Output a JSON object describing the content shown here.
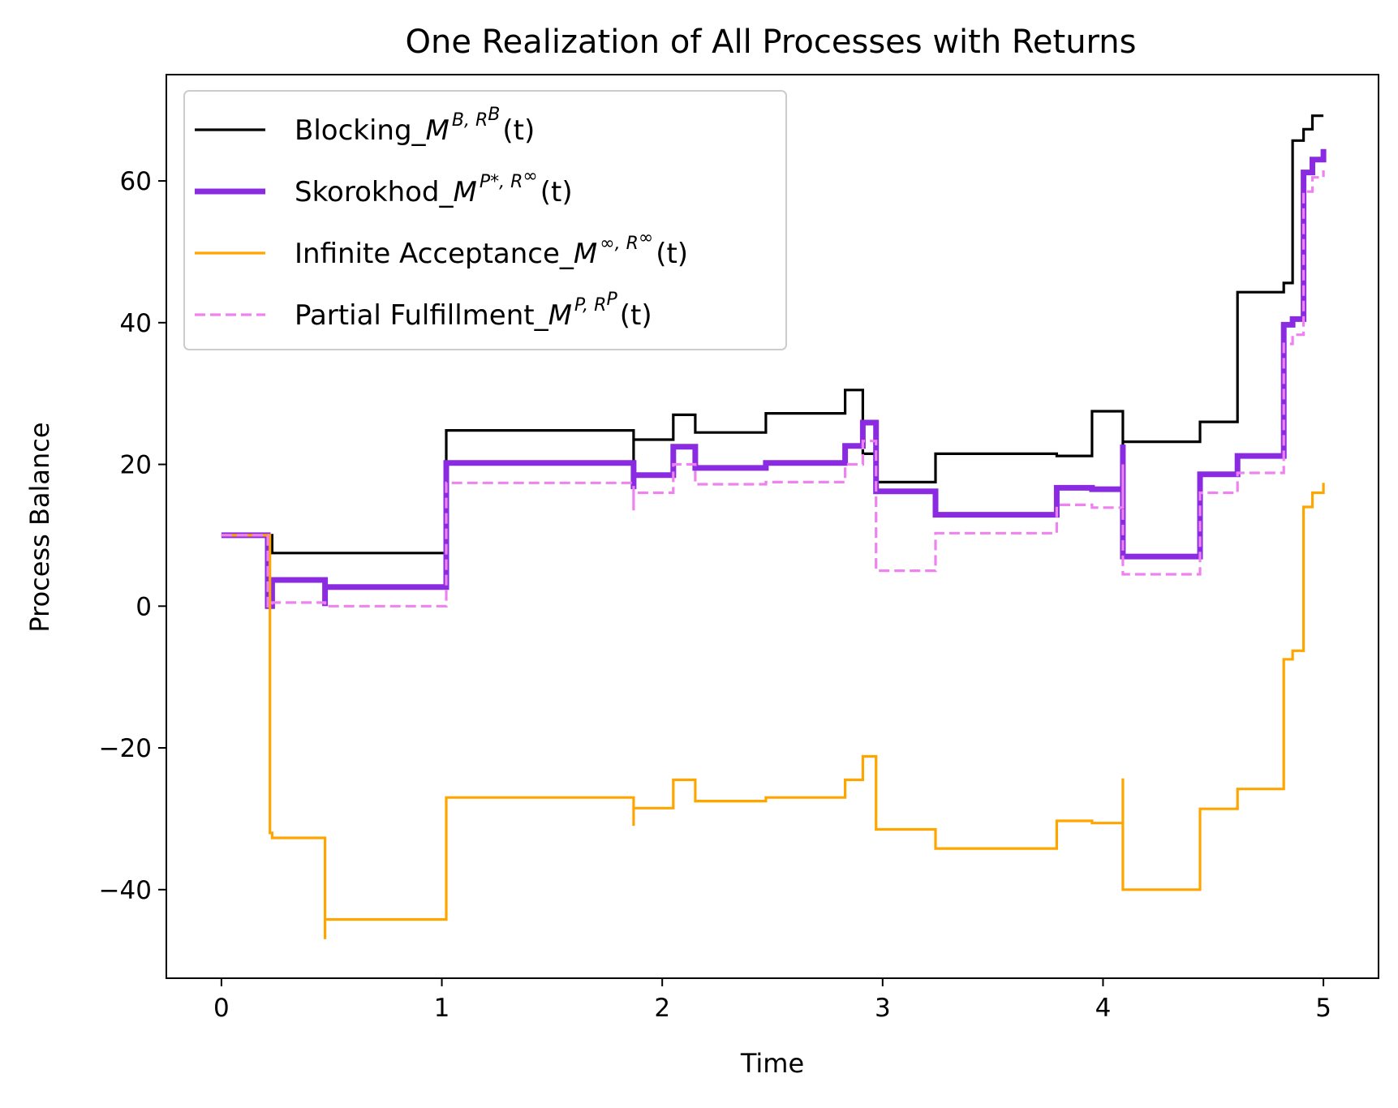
{
  "colors": {
    "blocking": "#000000",
    "skorokhod": "#8a2be2",
    "infinite": "#ffa500",
    "partial": "#ee82ee"
  },
  "chart_data": {
    "type": "line",
    "title": "One Realization of All Processes with Returns",
    "xlabel": "Time",
    "ylabel": "Process Balance",
    "xlim": [
      -0.25,
      5.25
    ],
    "ylim": [
      -52.5,
      75
    ],
    "xticks": [
      0,
      1,
      2,
      3,
      4,
      5
    ],
    "xtick_labels": [
      "0",
      "1",
      "2",
      "3",
      "4",
      "5"
    ],
    "yticks": [
      -40,
      -20,
      0,
      20,
      40,
      60
    ],
    "ytick_labels": [
      "−40",
      "−20",
      "0",
      "20",
      "40",
      "60"
    ],
    "grid": false,
    "legend_position": "top-left",
    "series": [
      {
        "key": "blocking",
        "name": "Blocking_",
        "math": {
          "base": "M",
          "sup": "B, R",
          "subsup": "B",
          "arg": "(t)"
        },
        "style": "solid",
        "width": 3.2,
        "x": [
          0,
          0.21,
          0.23,
          1.02,
          1.87,
          1.87,
          2.05,
          2.15,
          2.47,
          2.83,
          2.91,
          2.97,
          3.24,
          3.79,
          3.95,
          4.09,
          4.09,
          4.44,
          4.61,
          4.82,
          4.86,
          4.91,
          4.95,
          5.0
        ],
        "y": [
          10,
          10,
          7.5,
          24.8,
          19.5,
          23.5,
          27,
          24.5,
          27.2,
          30.5,
          21.5,
          17.5,
          21.5,
          21.2,
          27.5,
          8,
          23.2,
          26,
          44.3,
          45.6,
          65.7,
          67.3,
          69.2,
          69.2
        ]
      },
      {
        "key": "skorokhod",
        "name": "Skorokhod_",
        "math": {
          "base": "M",
          "sup": "P*, R",
          "subsup": "∞",
          "arg": "(t)"
        },
        "style": "solid",
        "width": 7,
        "x": [
          0,
          0.21,
          0.21,
          0.23,
          0.47,
          0.47,
          1.02,
          1.87,
          1.87,
          2.05,
          2.15,
          2.47,
          2.83,
          2.91,
          2.97,
          3.24,
          3.79,
          3.95,
          4.09,
          4.09,
          4.44,
          4.61,
          4.82,
          4.86,
          4.91,
          4.95,
          5.0
        ],
        "y": [
          10,
          10,
          0,
          3.7,
          0,
          2.7,
          20.2,
          16.5,
          18.5,
          22.5,
          19.5,
          20.2,
          22.6,
          25.9,
          16.2,
          12.9,
          16.7,
          16.5,
          22.8,
          7,
          18.6,
          21.2,
          39.7,
          40.5,
          61.2,
          63,
          64.5
        ]
      },
      {
        "key": "infinite",
        "name": "Infinite Acceptance_",
        "math": {
          "base": "M",
          "sup": "∞, R",
          "subsup": "∞",
          "arg": "(t)"
        },
        "style": "solid",
        "width": 3.2,
        "x": [
          0,
          0.21,
          0.22,
          0.23,
          0.47,
          0.47,
          1.02,
          1.87,
          1.87,
          2.05,
          2.15,
          2.47,
          2.83,
          2.91,
          2.97,
          3.24,
          3.79,
          3.95,
          4.09,
          4.09,
          4.44,
          4.61,
          4.82,
          4.86,
          4.91,
          4.95,
          5.0
        ],
        "y": [
          10,
          10,
          -32,
          -32.7,
          -47,
          -44.2,
          -27,
          -31,
          -28.5,
          -24.5,
          -27.5,
          -27,
          -24.5,
          -21.2,
          -31.5,
          -34.2,
          -30.3,
          -30.6,
          -24.3,
          -40,
          -28.6,
          -25.8,
          -7.5,
          -6.3,
          14,
          16,
          17.4
        ]
      },
      {
        "key": "partial",
        "name": "Partial Fulfillment_",
        "math": {
          "base": "M",
          "sup": "P, R",
          "subsup": "P",
          "arg": "(t)"
        },
        "style": "dashed",
        "width": 3.2,
        "x": [
          0,
          0.21,
          0.21,
          0.23,
          0.47,
          0.47,
          1.02,
          1.87,
          1.87,
          2.05,
          2.15,
          2.47,
          2.83,
          2.91,
          2.97,
          2.97,
          3.24,
          3.79,
          3.95,
          4.09,
          4.09,
          4.44,
          4.61,
          4.82,
          4.86,
          4.91,
          4.95,
          5.0
        ],
        "y": [
          10,
          10,
          0,
          0.5,
          0,
          0,
          17.4,
          13.5,
          16,
          20,
          17.2,
          17.5,
          20,
          23.3,
          13.4,
          5,
          10.3,
          14.3,
          13.9,
          20,
          4.5,
          16,
          18.8,
          37,
          38.3,
          58.5,
          60.5,
          61.5
        ]
      }
    ]
  }
}
